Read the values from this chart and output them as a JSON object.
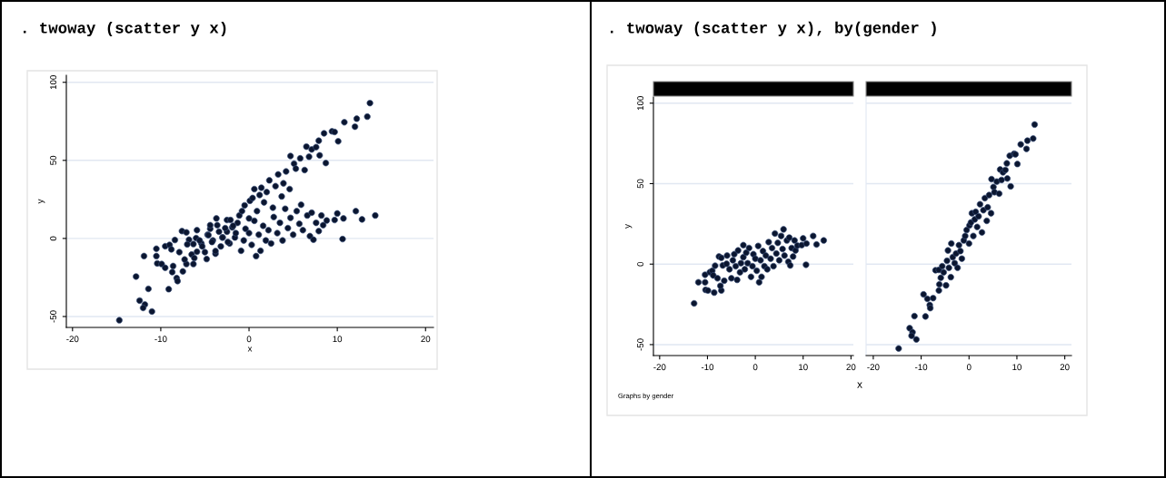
{
  "chart_data": [
    {
      "type": "scatter",
      "title": ". twoway (scatter y x)",
      "xlabel": "x",
      "ylabel": "y",
      "xlim": [
        -20.7,
        20.9
      ],
      "ylim": [
        -57,
        104.5
      ],
      "xticks": [
        -20,
        -10,
        0,
        10,
        20
      ],
      "yticks": [
        -50,
        0,
        50,
        100
      ],
      "grid": "y",
      "marker": "circle",
      "series": [
        {
          "color": "#0b1630",
          "x": [
            -12.8,
            -11.9,
            -10.5,
            -10.5,
            -10.4,
            -9.9,
            -9.5,
            -9.0,
            -8.8,
            -8.6,
            -8.4,
            -7.9,
            -7.6,
            -7.1,
            -7.1,
            -7.3,
            -6.8,
            -6.5,
            -6.0,
            -5.9,
            -5.4,
            -5.0,
            -4.7,
            -4.4,
            -4.1,
            -3.8,
            -3.6,
            -3.2,
            -3.0,
            -2.5,
            -2.5,
            -2.2,
            -1.9,
            -1.6,
            -1.3,
            -0.9,
            -0.6,
            -0.4,
            0.0,
            0.3,
            0.6,
            0.8,
            1.1,
            1.3,
            1.6,
            1.9,
            2.2,
            2.5,
            2.8,
            3.2,
            3.5,
            3.8,
            4.1,
            4.4,
            4.7,
            5.0,
            5.4,
            5.7,
            5.9,
            6.1,
            6.6,
            6.9,
            7.1,
            7.3,
            7.6,
            7.9,
            8.2,
            8.4,
            8.8,
            9.7,
            10.0,
            10.6,
            10.7,
            12.1,
            12.8,
            14.3
          ],
          "values": [
            -24.4,
            -11.3,
            -6.6,
            -11.3,
            -16.0,
            -16.4,
            -5.0,
            -4.1,
            -7.0,
            -17.7,
            -1.0,
            -8.8,
            4.7,
            3.9,
            -16.4,
            -13.5,
            -0.8,
            -10.3,
            0.2,
            5.3,
            -3.2,
            -8.8,
            2.4,
            6.2,
            -1.3,
            -9.8,
            8.5,
            -5.1,
            0.6,
            11.8,
            4.3,
            -3.2,
            7.1,
            0.6,
            10.0,
            -7.9,
            -1.3,
            6.2,
            3.4,
            -4.1,
            11.3,
            -11.3,
            2.4,
            -7.9,
            8.1,
            -1.3,
            5.3,
            -3.2,
            13.7,
            3.4,
            10.0,
            -1.3,
            19.0,
            6.6,
            13.2,
            2.4,
            17.5,
            9.4,
            21.6,
            5.3,
            14.7,
            1.5,
            16.5,
            -0.8,
            10.0,
            4.7,
            14.7,
            8.5,
            11.5,
            11.8,
            16.0,
            -0.4,
            12.8,
            17.5,
            12.2,
            14.7
          ]
        },
        {
          "color": "#0b1630",
          "x": [
            -14.7,
            -12.4,
            -11.8,
            -12.0,
            -11.0,
            -11.4,
            -9.1,
            -9.5,
            -8.7,
            -8.2,
            -8.1,
            -7.5,
            -7.0,
            -6.3,
            -6.2,
            -6.3,
            -5.9,
            -5.6,
            -5.3,
            -4.8,
            -4.6,
            -4.4,
            -4.2,
            -3.8,
            -3.7,
            -3.4,
            -3.0,
            -2.7,
            -2.4,
            -2.1,
            -1.8,
            -1.5,
            -1.1,
            -0.8,
            -0.5,
            0.0,
            0.1,
            0.4,
            0.6,
            0.9,
            1.2,
            1.4,
            1.7,
            2.0,
            2.3,
            2.7,
            3.0,
            3.3,
            3.7,
            3.9,
            4.2,
            4.6,
            4.7,
            5.1,
            5.3,
            5.8,
            6.3,
            6.5,
            6.8,
            7.1,
            7.6,
            7.9,
            8.0,
            8.5,
            8.7,
            9.4,
            9.7,
            10.1,
            10.8,
            12.0,
            12.2,
            13.4,
            13.7
          ],
          "values": [
            -52.4,
            -39.8,
            -42.3,
            -44.5,
            -46.8,
            -32.3,
            -32.5,
            -18.8,
            -21.6,
            -25.4,
            -27.3,
            -21.1,
            -3.8,
            -3.6,
            -12.6,
            -16.4,
            -8.5,
            -1.3,
            -5.1,
            -13.2,
            2.1,
            8.5,
            -2.3,
            -8.1,
            12.8,
            4.3,
            0.6,
            6.6,
            -2.3,
            11.8,
            8.1,
            3.4,
            14.7,
            17.5,
            21.2,
            12.8,
            24.1,
            25.9,
            31.6,
            17.5,
            27.8,
            32.5,
            23.1,
            29.7,
            37.2,
            19.7,
            33.5,
            41.0,
            26.9,
            35.3,
            42.9,
            31.6,
            52.8,
            47.9,
            44.7,
            51.3,
            43.8,
            58.8,
            52.3,
            57.0,
            58.5,
            62.6,
            53.2,
            67.3,
            48.3,
            68.6,
            68.2,
            62.2,
            74.4,
            71.6,
            76.7,
            78.0,
            86.7
          ]
        }
      ]
    },
    {
      "type": "scatter",
      "title": ". twoway (scatter y x), by(gender )",
      "xlabel": "x",
      "ylabel": "y",
      "annotations": [
        "Graphs by gender"
      ],
      "xlim": [
        -21.3,
        20.5
      ],
      "ylim": [
        -56.8,
        103.8
      ],
      "xticks": [
        -20,
        -10,
        0,
        10,
        20
      ],
      "yticks": [
        -50,
        0,
        50,
        100
      ],
      "grid": "y",
      "marker": "circle",
      "series": [
        {
          "color": "#0b1630",
          "x": [
            -12.8,
            -11.9,
            -10.5,
            -10.5,
            -10.4,
            -9.9,
            -9.5,
            -9.0,
            -8.8,
            -8.6,
            -8.4,
            -7.9,
            -7.6,
            -7.1,
            -7.1,
            -7.3,
            -6.8,
            -6.5,
            -6.0,
            -5.9,
            -5.4,
            -5.0,
            -4.7,
            -4.4,
            -4.1,
            -3.8,
            -3.6,
            -3.2,
            -3.0,
            -2.5,
            -2.5,
            -2.2,
            -1.9,
            -1.6,
            -1.3,
            -0.9,
            -0.6,
            -0.4,
            0.0,
            0.3,
            0.6,
            0.8,
            1.1,
            1.3,
            1.6,
            1.9,
            2.2,
            2.5,
            2.8,
            3.2,
            3.5,
            3.8,
            4.1,
            4.4,
            4.7,
            5.0,
            5.4,
            5.7,
            5.9,
            6.1,
            6.6,
            6.9,
            7.1,
            7.3,
            7.6,
            7.9,
            8.2,
            8.4,
            8.8,
            9.7,
            10.0,
            10.6,
            10.7,
            12.1,
            12.8,
            14.3
          ],
          "values": [
            -24.4,
            -11.3,
            -6.6,
            -11.3,
            -16.0,
            -16.4,
            -5.0,
            -4.1,
            -7.0,
            -17.7,
            -1.0,
            -8.8,
            4.7,
            3.9,
            -16.4,
            -13.5,
            -0.8,
            -10.3,
            0.2,
            5.3,
            -3.2,
            -8.8,
            2.4,
            6.2,
            -1.3,
            -9.8,
            8.5,
            -5.1,
            0.6,
            11.8,
            4.3,
            -3.2,
            7.1,
            0.6,
            10.0,
            -7.9,
            -1.3,
            6.2,
            3.4,
            -4.1,
            11.3,
            -11.3,
            2.4,
            -7.9,
            8.1,
            -1.3,
            5.3,
            -3.2,
            13.7,
            3.4,
            10.0,
            -1.3,
            19.0,
            6.6,
            13.2,
            2.4,
            17.5,
            9.4,
            21.6,
            5.3,
            14.7,
            1.5,
            16.5,
            -0.8,
            10.0,
            4.7,
            14.7,
            8.5,
            11.5,
            11.8,
            16.0,
            -0.4,
            12.8,
            17.5,
            12.2,
            14.7
          ]
        }
      ]
    },
    {
      "type": "scatter",
      "xlim": [
        -21.5,
        21.4
      ],
      "ylim": [
        -56.8,
        103.8
      ],
      "xticks": [
        -20,
        -10,
        0,
        10,
        20
      ],
      "yticks": [
        -50,
        0,
        50,
        100
      ],
      "grid": "y",
      "marker": "circle",
      "tick_labels": "x",
      "series": [
        {
          "color": "#0b1630",
          "x": [
            -14.7,
            -12.4,
            -11.8,
            -12.0,
            -11.0,
            -11.4,
            -9.1,
            -9.5,
            -8.7,
            -8.2,
            -8.1,
            -7.5,
            -7.0,
            -6.3,
            -6.2,
            -6.3,
            -5.9,
            -5.6,
            -5.3,
            -4.8,
            -4.6,
            -4.4,
            -4.2,
            -3.8,
            -3.7,
            -3.4,
            -3.0,
            -2.7,
            -2.4,
            -2.1,
            -1.8,
            -1.5,
            -1.1,
            -0.8,
            -0.5,
            0.0,
            0.1,
            0.4,
            0.6,
            0.9,
            1.2,
            1.4,
            1.7,
            2.0,
            2.3,
            2.7,
            3.0,
            3.3,
            3.7,
            3.9,
            4.2,
            4.6,
            4.7,
            5.1,
            5.3,
            5.8,
            6.3,
            6.5,
            6.8,
            7.1,
            7.6,
            7.9,
            8.0,
            8.5,
            8.7,
            9.4,
            9.7,
            10.1,
            10.8,
            12.0,
            12.2,
            13.4,
            13.7
          ],
          "values": [
            -52.4,
            -39.8,
            -42.3,
            -44.5,
            -46.8,
            -32.3,
            -32.5,
            -18.8,
            -21.6,
            -25.4,
            -27.3,
            -21.1,
            -3.8,
            -3.6,
            -12.6,
            -16.4,
            -8.5,
            -1.3,
            -5.1,
            -13.2,
            2.1,
            8.5,
            -2.3,
            -8.1,
            12.8,
            4.3,
            0.6,
            6.6,
            -2.3,
            11.8,
            8.1,
            3.4,
            14.7,
            17.5,
            21.2,
            12.8,
            24.1,
            25.9,
            31.6,
            17.5,
            27.8,
            32.5,
            23.1,
            29.7,
            37.2,
            19.7,
            33.5,
            41.0,
            26.9,
            35.3,
            42.9,
            31.6,
            52.8,
            47.9,
            44.7,
            51.3,
            43.8,
            58.8,
            52.3,
            57.0,
            58.5,
            62.6,
            53.2,
            67.3,
            48.3,
            68.6,
            68.2,
            62.2,
            74.4,
            71.6,
            76.7,
            78.0,
            86.7
          ]
        }
      ]
    }
  ]
}
